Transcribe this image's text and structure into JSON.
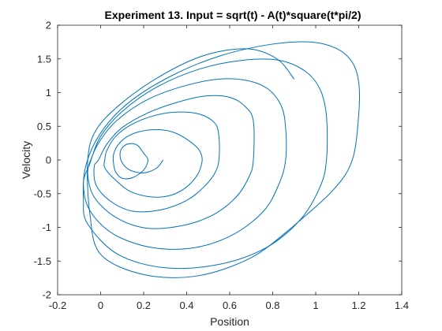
{
  "chart_data": {
    "type": "line",
    "title": "Experiment 13. Input = sqrt(t) - A(t)*square(t*pi/2)",
    "xlabel": "Position",
    "ylabel": "Velocity",
    "xlim": [
      -0.2,
      1.4
    ],
    "ylim": [
      -2,
      2
    ],
    "xticks": [
      -0.2,
      0,
      0.2,
      0.4,
      0.6,
      0.8,
      1,
      1.2,
      1.4
    ],
    "yticks": [
      -2,
      -1.5,
      -1,
      -0.5,
      0,
      0.5,
      1,
      1.5,
      2
    ],
    "xtick_labels": [
      "-0.2",
      "0",
      "0.2",
      "0.4",
      "0.6",
      "0.8",
      "1",
      "1.2",
      "1.4"
    ],
    "ytick_labels": [
      "-2",
      "-1.5",
      "-1",
      "-0.5",
      "0",
      "0.5",
      "1",
      "1.5",
      "2"
    ],
    "grid": false,
    "box": true,
    "line_color": "#0072BD",
    "series": [
      {
        "x": [
          0.29,
          0.28,
          0.26,
          0.22,
          0.18,
          0.13,
          0.1,
          0.09,
          0.1,
          0.13,
          0.17,
          0.2,
          0.22,
          0.2,
          0.15,
          0.1,
          0.07,
          0.06,
          0.06,
          0.08,
          0.12,
          0.18,
          0.26,
          0.33,
          0.39,
          0.45,
          0.47,
          0.47,
          0.45,
          0.4,
          0.33,
          0.24,
          0.14,
          0.07,
          0.02,
          0.02,
          0.03,
          0.07,
          0.14,
          0.24,
          0.35,
          0.46,
          0.53,
          0.55,
          0.55,
          0.53,
          0.48,
          0.4,
          0.28,
          0.15,
          0.05,
          -0.02,
          -0.03,
          -0.01,
          0.03,
          0.1,
          0.22,
          0.36,
          0.49,
          0.6,
          0.67,
          0.71,
          0.71,
          0.69,
          0.63,
          0.52,
          0.37,
          0.21,
          0.07,
          -0.03,
          -0.06,
          -0.04,
          0.0,
          0.08,
          0.22,
          0.39,
          0.55,
          0.68,
          0.78,
          0.84,
          0.86,
          0.86,
          0.83,
          0.76,
          0.62,
          0.44,
          0.24,
          0.06,
          -0.05,
          -0.08,
          -0.05,
          0.0,
          0.1,
          0.26,
          0.46,
          0.66,
          0.83,
          0.95,
          1.02,
          1.05,
          1.05,
          1.02,
          0.93,
          0.77,
          0.55,
          0.3,
          0.08,
          -0.06,
          -0.08,
          -0.07,
          0.0,
          0.13,
          0.33,
          0.56,
          0.8,
          0.98,
          1.1,
          1.17,
          1.2,
          1.2,
          1.17,
          1.08,
          0.89
        ],
        "y": [
          0.0,
          -0.05,
          -0.12,
          -0.18,
          -0.19,
          -0.14,
          -0.04,
          0.08,
          0.18,
          0.24,
          0.22,
          0.1,
          0.0,
          -0.15,
          -0.26,
          -0.27,
          -0.18,
          -0.05,
          0.08,
          0.22,
          0.34,
          0.42,
          0.45,
          0.42,
          0.33,
          0.18,
          0.06,
          -0.05,
          -0.22,
          -0.4,
          -0.52,
          -0.55,
          -0.47,
          -0.3,
          -0.12,
          0.02,
          0.15,
          0.35,
          0.52,
          0.65,
          0.71,
          0.68,
          0.55,
          0.35,
          0.0,
          -0.2,
          -0.4,
          -0.6,
          -0.74,
          -0.76,
          -0.62,
          -0.38,
          -0.1,
          0.0,
          0.24,
          0.48,
          0.7,
          0.86,
          0.95,
          0.93,
          0.8,
          0.58,
          0.0,
          -0.25,
          -0.55,
          -0.82,
          -0.98,
          -1.01,
          -0.85,
          -0.55,
          -0.2,
          0.05,
          0.3,
          0.6,
          0.9,
          1.1,
          1.2,
          1.18,
          1.05,
          0.8,
          0.48,
          0.0,
          -0.35,
          -0.75,
          -1.1,
          -1.3,
          -1.3,
          -1.1,
          -0.75,
          -0.35,
          -0.05,
          0.35,
          0.72,
          1.08,
          1.35,
          1.48,
          1.48,
          1.32,
          1.05,
          0.65,
          0.0,
          -0.4,
          -0.88,
          -1.3,
          -1.55,
          -1.6,
          -1.4,
          -0.95,
          -0.6,
          -0.1,
          0.4,
          0.85,
          1.25,
          1.55,
          1.72,
          1.75,
          1.65,
          1.45,
          1.15,
          0.68,
          0.0,
          -0.45,
          -1.0
        ]
      },
      {
        "x": [
          0.89,
          0.7,
          0.45,
          0.2,
          0.0,
          -0.05,
          -0.06,
          -0.02,
          0.1,
          0.28,
          0.48,
          0.68,
          0.82,
          0.9
        ],
        "y": [
          -1.0,
          -1.45,
          -1.72,
          -1.7,
          -1.4,
          -0.8,
          0.0,
          0.45,
          0.85,
          1.25,
          1.55,
          1.65,
          1.5,
          1.2
        ]
      }
    ]
  }
}
